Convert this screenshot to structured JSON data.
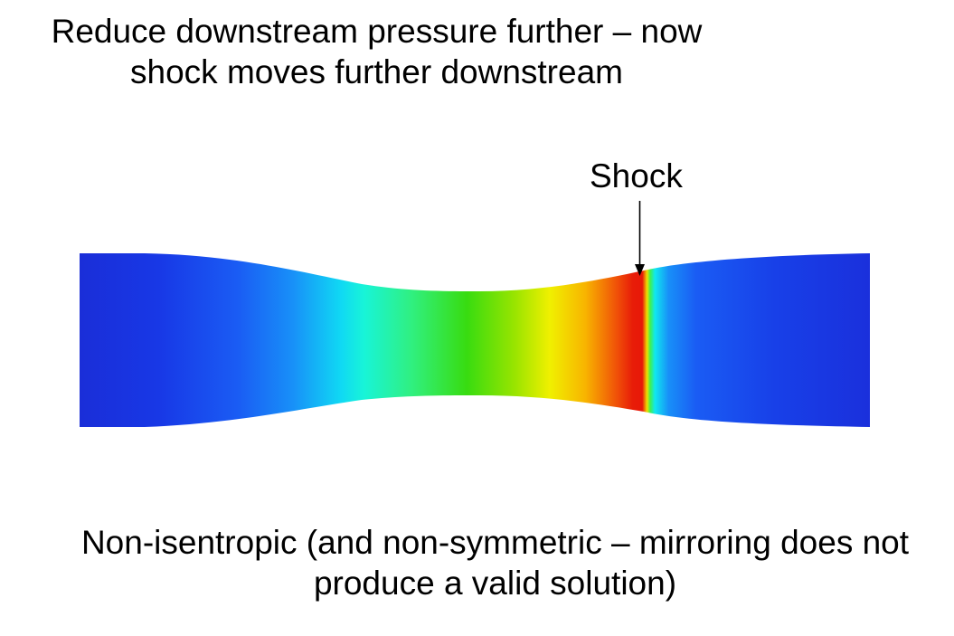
{
  "title": {
    "line1": "Reduce downstream pressure further – now",
    "line2": "shock moves further downstream"
  },
  "annotation": {
    "label": "Shock"
  },
  "caption": {
    "line1": "Non-isentropic (and non-symmetric – mirroring does not",
    "line2": "produce a valid solution)"
  },
  "colors": {
    "low": "#1030e0",
    "cyan": "#00f0f0",
    "green": "#30e000",
    "yellow": "#f0f000",
    "red": "#e81808",
    "arrow": "#000000"
  }
}
